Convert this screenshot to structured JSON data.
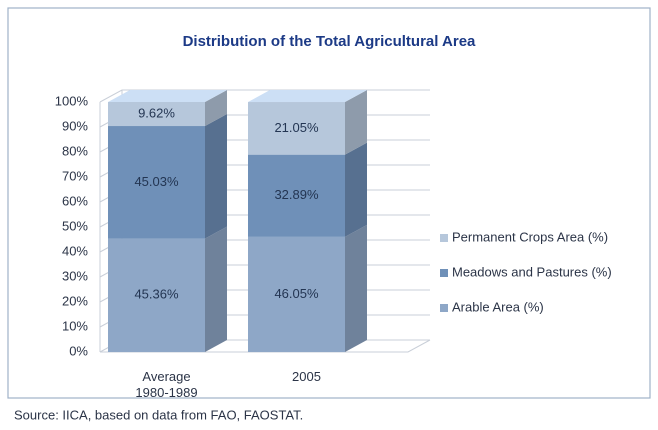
{
  "chart_data": {
    "type": "bar3d_stacked",
    "title": "Distribution of the Total Agricultural Area",
    "categories": [
      "Average\n1980-1989",
      "2005"
    ],
    "series": [
      {
        "name": "Arable Area (%)",
        "color": "#8ea7c7",
        "values": [
          45.36,
          46.05
        ],
        "value_labels": [
          "45.36%",
          "46.05%"
        ]
      },
      {
        "name": "Meadows and Pastures (%)",
        "color": "#6f90b8",
        "values": [
          45.03,
          32.89
        ],
        "value_labels": [
          "45.03%",
          "32.89%"
        ]
      },
      {
        "name": "Permanent Crops Area (%)",
        "color": "#b6c7db",
        "values": [
          9.62,
          21.05
        ],
        "value_labels": [
          "9.62%",
          "21.05%"
        ]
      }
    ],
    "ylim": [
      0,
      100
    ],
    "yticks": [
      {
        "value": 0,
        "label": "0%"
      },
      {
        "value": 10,
        "label": "10%"
      },
      {
        "value": 20,
        "label": "20%"
      },
      {
        "value": 30,
        "label": "30%"
      },
      {
        "value": 40,
        "label": "40%"
      },
      {
        "value": 50,
        "label": "50%"
      },
      {
        "value": 60,
        "label": "60%"
      },
      {
        "value": 70,
        "label": "70%"
      },
      {
        "value": 80,
        "label": "80%"
      },
      {
        "value": 90,
        "label": "90%"
      },
      {
        "value": 100,
        "label": "100%"
      }
    ],
    "grid": true,
    "legend": "right",
    "source": "Source: IICA, based on data from FAO, FAOSTAT."
  }
}
